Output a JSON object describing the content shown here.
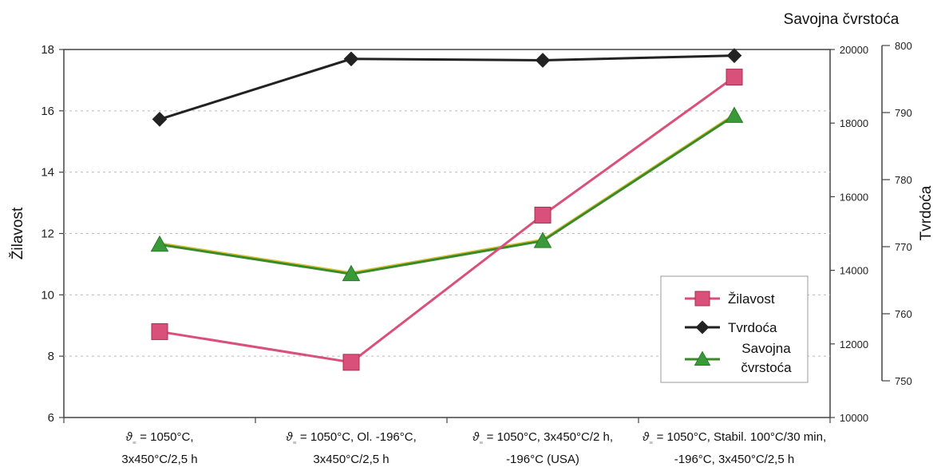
{
  "chart_data": {
    "type": "line",
    "categories": [
      [
        "ϑ",
        "₌",
        " = 1050°C,",
        "3x450°C/2,5 h"
      ],
      [
        "ϑ",
        "₌",
        " = 1050°C, Ol. -196°C,",
        "3x450°C/2,5 h"
      ],
      [
        "ϑ",
        "₌",
        " = 1050°C, 3x450°C/2 h,",
        "-196°C (USA)"
      ],
      [
        "ϑ",
        "₌",
        " = 1050°C, Stabil. 100°C/30 min,",
        "-196°C,  3x450°C/2,5 h"
      ]
    ],
    "axes": {
      "left": {
        "label": "Žilavost",
        "min": 6,
        "max": 18,
        "ticks": [
          6,
          8,
          10,
          12,
          14,
          16,
          18
        ]
      },
      "right1": {
        "label": "Savojna čvrstoća",
        "min": 10000,
        "max": 20000,
        "ticks": [
          10000,
          12000,
          14000,
          16000,
          18000,
          20000
        ]
      },
      "right2": {
        "label": "Tvrdoća",
        "min": 750,
        "max": 800,
        "ticks": [
          750,
          760,
          770,
          780,
          790,
          800
        ]
      }
    },
    "series": [
      {
        "name": "Žilavost",
        "axis": "left",
        "values": [
          8.8,
          7.8,
          12.6,
          17.1
        ],
        "color": "#d9507a",
        "line_color": "#d9507a",
        "marker": "square"
      },
      {
        "name": "Tvrdoća",
        "axis": "right2",
        "values": [
          789,
          798,
          797.8,
          798.5
        ],
        "color": "#222222",
        "line_color": "#222222",
        "marker": "diamond"
      },
      {
        "name": "Savojna čvrstoća",
        "axis": "right1",
        "values": [
          14700,
          13900,
          14800,
          18200
        ],
        "color": "#3a9a3a",
        "line_color": "#3a8a2a",
        "marker": "triangle"
      }
    ],
    "legend": {
      "position": "lower-right",
      "entries": [
        {
          "lines": [
            "Žilavost"
          ]
        },
        {
          "lines": [
            "Tvrdoća"
          ]
        },
        {
          "lines": [
            "Savojna",
            "čvrstoća"
          ]
        }
      ]
    },
    "grid": true
  }
}
